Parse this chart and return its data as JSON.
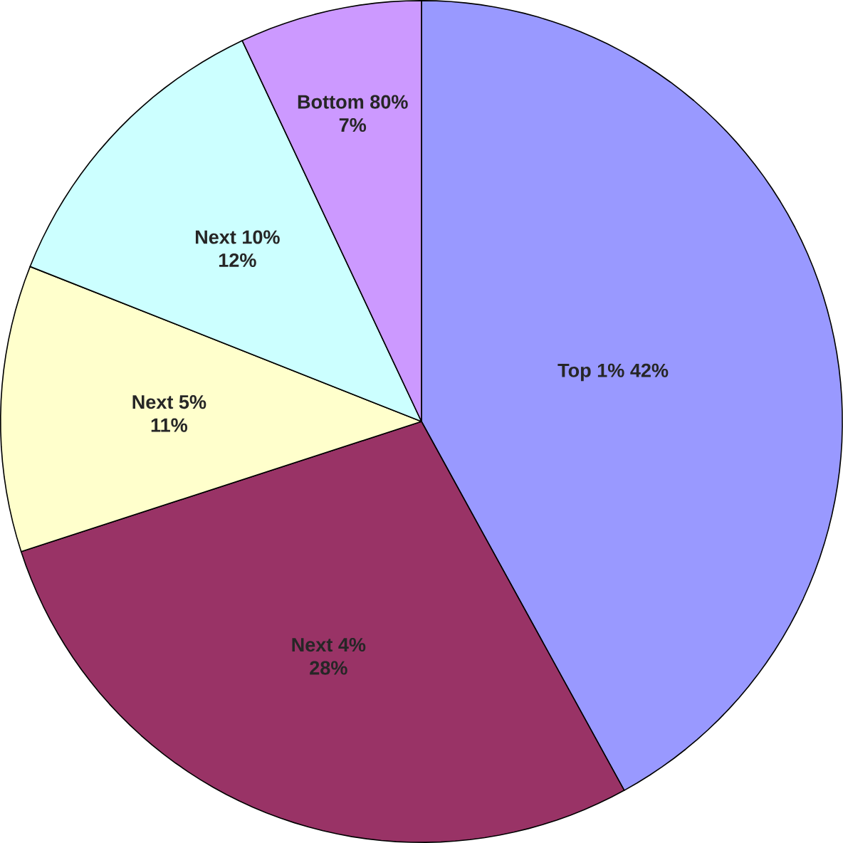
{
  "chart_data": {
    "type": "pie",
    "categories": [
      "Top 1%",
      "Next 4%",
      "Next 5%",
      "Next 10%",
      "Bottom 80%"
    ],
    "values": [
      42,
      28,
      11,
      12,
      7
    ],
    "value_labels": [
      "42%",
      "28%",
      "11%",
      "12%",
      "7%"
    ],
    "colors": [
      "#9999ff",
      "#993366",
      "#ffffcc",
      "#ccffff",
      "#cc99ff"
    ]
  }
}
